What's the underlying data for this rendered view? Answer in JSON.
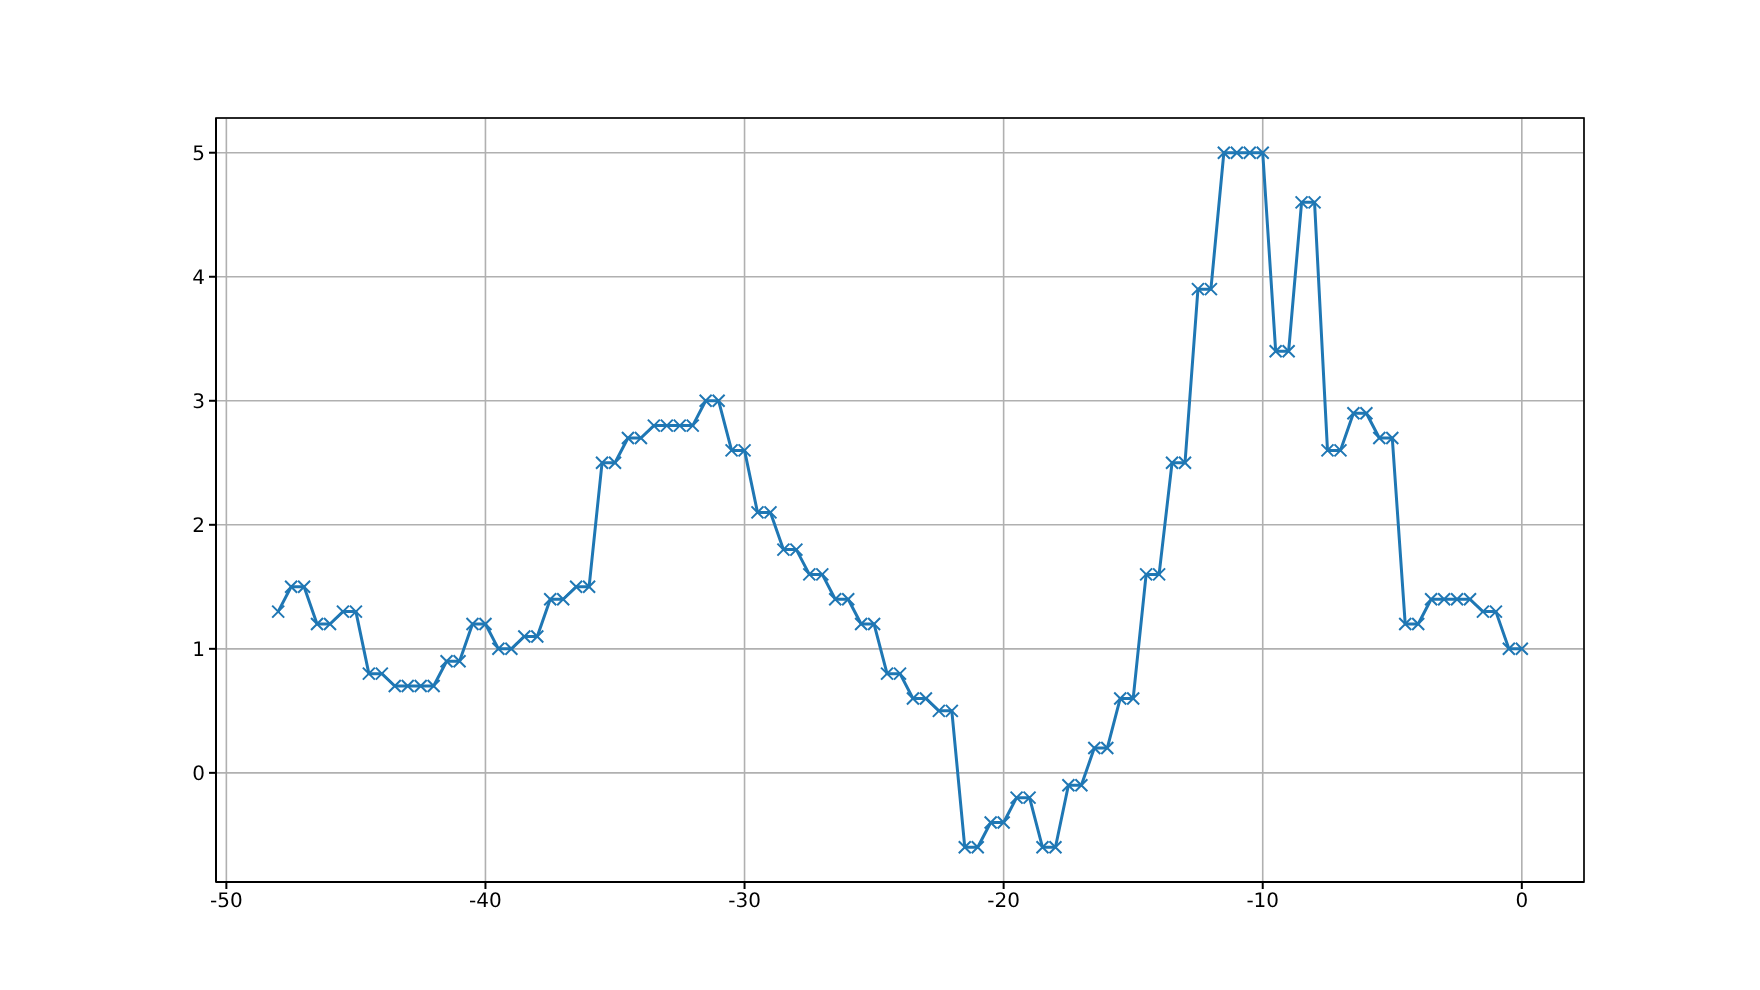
{
  "chart_data": {
    "type": "line",
    "x": [
      -48,
      -47.5,
      -47,
      -46.5,
      -46,
      -45.5,
      -45,
      -44.5,
      -44,
      -43.5,
      -43,
      -42.5,
      -42,
      -41.5,
      -41,
      -40.5,
      -40,
      -39.5,
      -39,
      -38.5,
      -38,
      -37.5,
      -37,
      -36.5,
      -36,
      -35.5,
      -35,
      -34.5,
      -34,
      -33.5,
      -33,
      -32.5,
      -32,
      -31.5,
      -31,
      -30.5,
      -30,
      -29.5,
      -29,
      -28.5,
      -28,
      -27.5,
      -27,
      -26.5,
      -26,
      -25.5,
      -25,
      -24.5,
      -24,
      -23.5,
      -23,
      -22.5,
      -22,
      -21.5,
      -21,
      -20.5,
      -20,
      -19.5,
      -19,
      -18.5,
      -18,
      -17.5,
      -17,
      -16.5,
      -16,
      -15.5,
      -15,
      -14.5,
      -14,
      -13.5,
      -13,
      -12.5,
      -12,
      -11.5,
      -11,
      -10.5,
      -10,
      -9.5,
      -9,
      -8.5,
      -8,
      -7.5,
      -7,
      -6.5,
      -6,
      -5.5,
      -5,
      -4.5,
      -4,
      -3.5,
      -3,
      -2.5,
      -2,
      -1.5,
      -1,
      -0.5,
      0
    ],
    "series": [
      {
        "color": "#1f77b4",
        "values": [
          1.3,
          1.5,
          1.5,
          1.2,
          1.2,
          1.3,
          1.3,
          0.8,
          0.8,
          0.7,
          0.7,
          0.7,
          0.7,
          0.9,
          0.9,
          1.2,
          1.2,
          1.0,
          1.0,
          1.1,
          1.1,
          1.4,
          1.4,
          1.5,
          1.5,
          2.5,
          2.5,
          2.7,
          2.7,
          2.8,
          2.8,
          2.8,
          2.8,
          3.0,
          3.0,
          2.6,
          2.6,
          2.1,
          2.1,
          1.8,
          1.8,
          1.6,
          1.6,
          1.4,
          1.4,
          1.2,
          1.2,
          0.8,
          0.8,
          0.6,
          0.6,
          0.5,
          0.5,
          -0.6,
          -0.6,
          -0.4,
          -0.4,
          -0.2,
          -0.2,
          -0.6,
          -0.6,
          -0.1,
          -0.1,
          0.2,
          0.2,
          0.6,
          0.6,
          1.6,
          1.6,
          2.5,
          2.5,
          3.9,
          3.9,
          5.0,
          5.0,
          5.0,
          5.0,
          3.4,
          3.4,
          4.6,
          4.6,
          2.6,
          2.6,
          2.9,
          2.9,
          2.7,
          2.7,
          1.2,
          1.2,
          1.4,
          1.4,
          1.4,
          1.4,
          1.3,
          1.3,
          1.0,
          1.0
        ]
      }
    ],
    "xlim": [
      -50.4,
      2.4
    ],
    "ylim": [
      -0.88,
      5.28
    ],
    "xticks": [
      -50,
      -40,
      -30,
      -20,
      -10,
      0
    ],
    "yticks": [
      0,
      1,
      2,
      3,
      4,
      5
    ],
    "grid": true,
    "marker": "cross",
    "line_style": "solid"
  }
}
